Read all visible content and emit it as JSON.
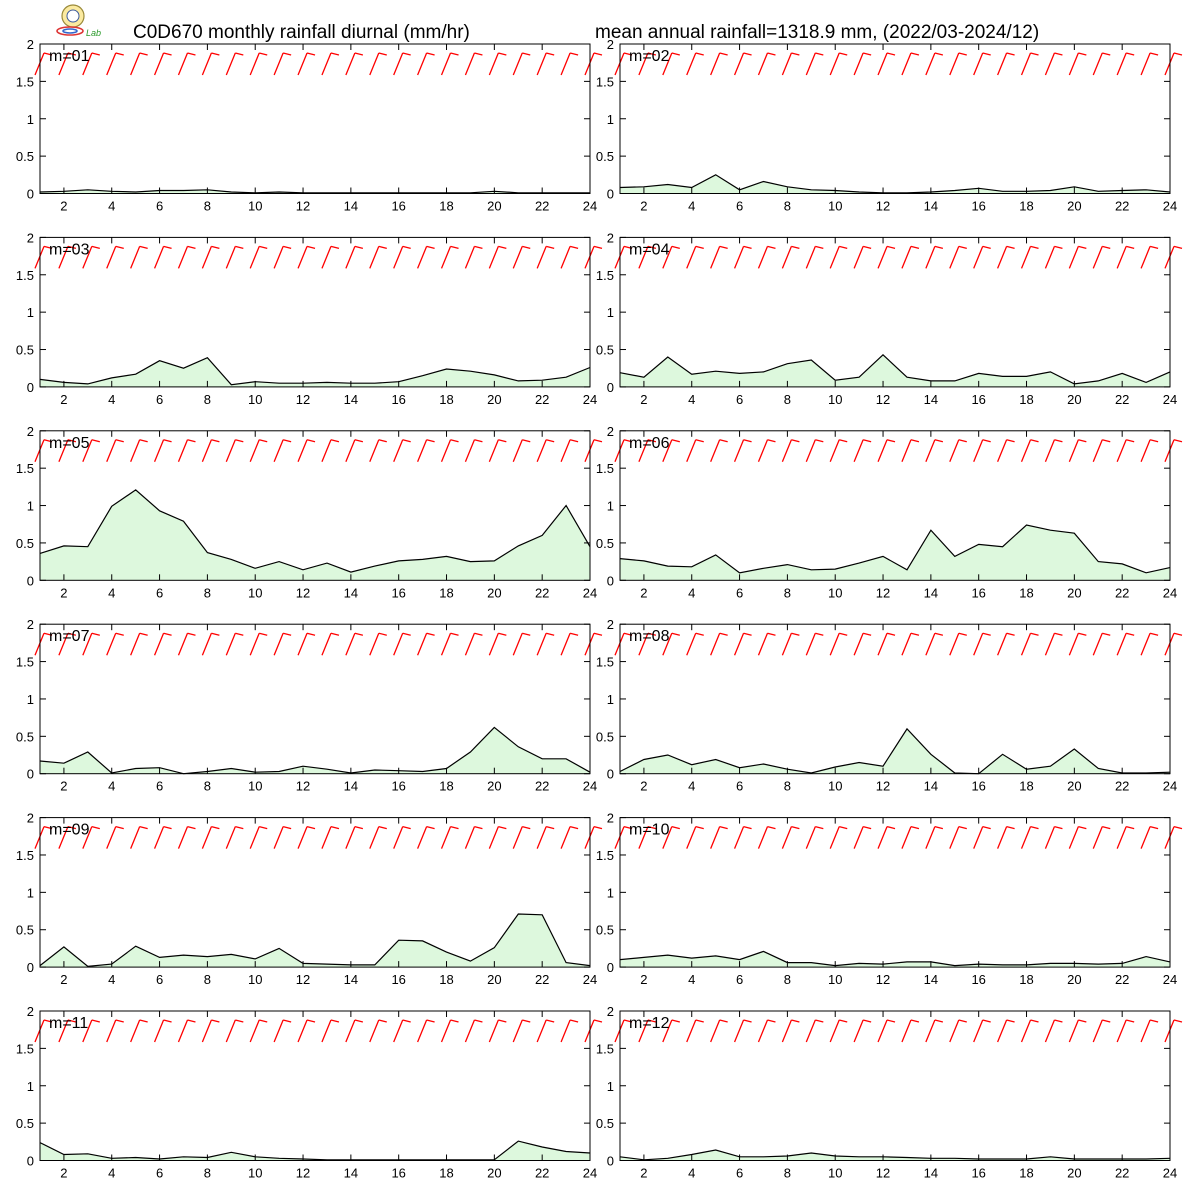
{
  "header": {
    "title_left": "C0D670 monthly rainfall diurnal (mm/hr)",
    "title_right": "mean annual rainfall=1318.9 mm, (2022/03-2024/12)",
    "logo_text": "Lab"
  },
  "colors": {
    "area_fill": "#ddf8dd",
    "line": "#000000",
    "wind_barb": "#ff0000",
    "frame": "#000000"
  },
  "chart_data": {
    "type": "area",
    "layout": "6 rows x 2 columns of panels",
    "x": [
      1,
      2,
      3,
      4,
      5,
      6,
      7,
      8,
      9,
      10,
      11,
      12,
      13,
      14,
      15,
      16,
      17,
      18,
      19,
      20,
      21,
      22,
      23,
      24
    ],
    "x_ticks": [
      2,
      4,
      6,
      8,
      10,
      12,
      14,
      16,
      18,
      20,
      22,
      24
    ],
    "y_ticks": [
      "0",
      "0.5",
      "1",
      "1.5",
      "2"
    ],
    "y_tick_values": [
      0,
      0.5,
      1,
      1.5,
      2
    ],
    "xlim": [
      1,
      24
    ],
    "ylim": [
      0,
      2
    ],
    "grid": false,
    "overlay": "red wind barbs per hour near the top of each panel",
    "panels": [
      {
        "label": "m=01",
        "values": [
          0.02,
          0.03,
          0.05,
          0.03,
          0.02,
          0.04,
          0.04,
          0.05,
          0.02,
          0.01,
          0.02,
          0.01,
          0.01,
          0.01,
          0.01,
          0.01,
          0.01,
          0.01,
          0.01,
          0.03,
          0.01,
          0.01,
          0.01,
          0.01
        ]
      },
      {
        "label": "m=02",
        "values": [
          0.08,
          0.09,
          0.12,
          0.08,
          0.25,
          0.05,
          0.16,
          0.09,
          0.05,
          0.04,
          0.02,
          0.01,
          0.01,
          0.02,
          0.04,
          0.07,
          0.03,
          0.03,
          0.04,
          0.09,
          0.03,
          0.04,
          0.05,
          0.02
        ]
      },
      {
        "label": "m=03",
        "values": [
          0.1,
          0.06,
          0.04,
          0.12,
          0.17,
          0.35,
          0.25,
          0.39,
          0.03,
          0.07,
          0.05,
          0.05,
          0.06,
          0.05,
          0.05,
          0.07,
          0.15,
          0.24,
          0.21,
          0.16,
          0.08,
          0.09,
          0.13,
          0.26
        ]
      },
      {
        "label": "m=04",
        "values": [
          0.19,
          0.13,
          0.4,
          0.17,
          0.21,
          0.18,
          0.2,
          0.31,
          0.36,
          0.09,
          0.13,
          0.43,
          0.13,
          0.08,
          0.08,
          0.18,
          0.14,
          0.14,
          0.2,
          0.04,
          0.08,
          0.18,
          0.06,
          0.2
        ]
      },
      {
        "label": "m=05",
        "values": [
          0.36,
          0.46,
          0.45,
          0.99,
          1.21,
          0.93,
          0.79,
          0.37,
          0.28,
          0.16,
          0.25,
          0.14,
          0.23,
          0.11,
          0.19,
          0.26,
          0.28,
          0.32,
          0.25,
          0.26,
          0.46,
          0.6,
          1.0,
          0.45
        ]
      },
      {
        "label": "m=06",
        "values": [
          0.29,
          0.26,
          0.19,
          0.18,
          0.34,
          0.1,
          0.16,
          0.21,
          0.14,
          0.15,
          0.23,
          0.32,
          0.14,
          0.67,
          0.32,
          0.48,
          0.45,
          0.74,
          0.67,
          0.63,
          0.25,
          0.22,
          0.1,
          0.17
        ]
      },
      {
        "label": "m=07",
        "values": [
          0.17,
          0.14,
          0.29,
          0.01,
          0.07,
          0.08,
          0.0,
          0.03,
          0.07,
          0.02,
          0.03,
          0.1,
          0.06,
          0.01,
          0.05,
          0.04,
          0.03,
          0.07,
          0.29,
          0.62,
          0.36,
          0.2,
          0.2,
          0.02
        ]
      },
      {
        "label": "m=08",
        "values": [
          0.03,
          0.19,
          0.25,
          0.12,
          0.19,
          0.08,
          0.13,
          0.06,
          0.01,
          0.09,
          0.15,
          0.1,
          0.6,
          0.26,
          0.01,
          0.0,
          0.26,
          0.06,
          0.1,
          0.33,
          0.07,
          0.01,
          0.01,
          0.02
        ]
      },
      {
        "label": "m=09",
        "values": [
          0.02,
          0.27,
          0.01,
          0.04,
          0.28,
          0.13,
          0.16,
          0.14,
          0.17,
          0.11,
          0.25,
          0.05,
          0.04,
          0.03,
          0.03,
          0.36,
          0.35,
          0.2,
          0.08,
          0.26,
          0.71,
          0.7,
          0.06,
          0.02
        ]
      },
      {
        "label": "m=10",
        "values": [
          0.1,
          0.13,
          0.16,
          0.12,
          0.15,
          0.1,
          0.21,
          0.06,
          0.06,
          0.02,
          0.05,
          0.04,
          0.07,
          0.07,
          0.02,
          0.04,
          0.03,
          0.03,
          0.05,
          0.05,
          0.04,
          0.05,
          0.14,
          0.07
        ]
      },
      {
        "label": "m=11",
        "values": [
          0.24,
          0.08,
          0.09,
          0.03,
          0.04,
          0.02,
          0.05,
          0.04,
          0.11,
          0.05,
          0.03,
          0.02,
          0.01,
          0.01,
          0.01,
          0.01,
          0.01,
          0.01,
          0.01,
          0.01,
          0.26,
          0.18,
          0.12,
          0.1
        ]
      },
      {
        "label": "m=12",
        "values": [
          0.05,
          0.01,
          0.03,
          0.08,
          0.14,
          0.05,
          0.05,
          0.06,
          0.1,
          0.06,
          0.05,
          0.05,
          0.04,
          0.03,
          0.03,
          0.02,
          0.02,
          0.02,
          0.05,
          0.02,
          0.02,
          0.02,
          0.02,
          0.03
        ]
      }
    ]
  }
}
